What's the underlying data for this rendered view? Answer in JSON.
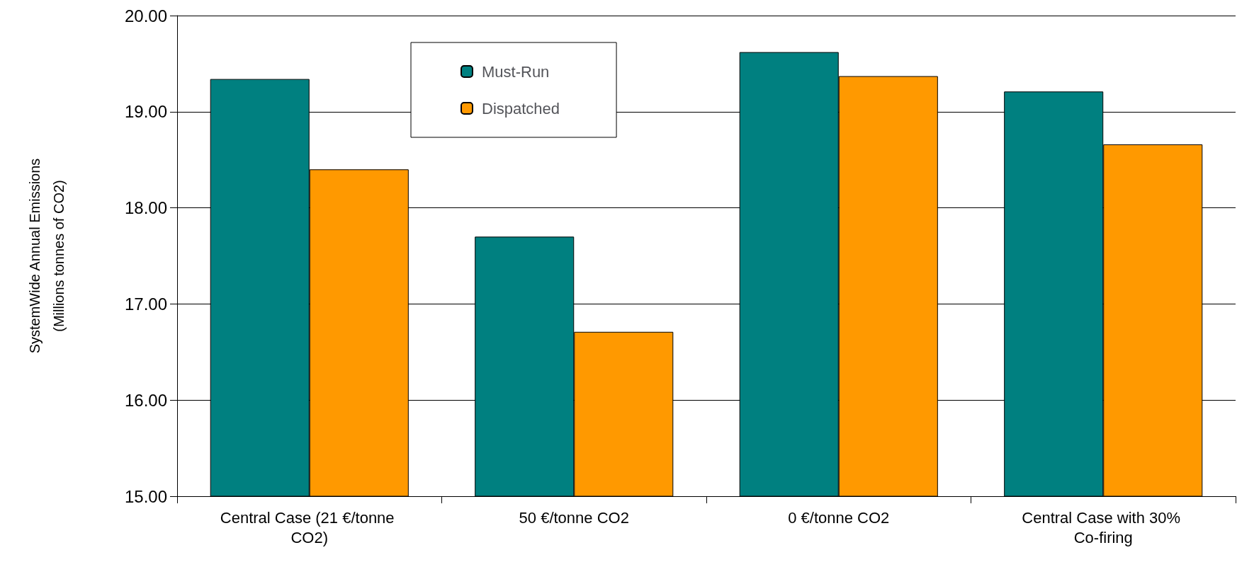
{
  "chart_data": {
    "type": "bar",
    "ylabel": "SystemWide Annual Emissions\n(Millions tonnes of CO2)",
    "categories": [
      "Central Case (21 €/tonne CO2)",
      "50 €/tonne CO2",
      "0 €/tonne CO2",
      "Central Case with 30% Co-firing"
    ],
    "series": [
      {
        "name": "Must-Run",
        "color": "#008080",
        "values": [
          19.34,
          17.7,
          19.62,
          19.21
        ]
      },
      {
        "name": "Dispatched",
        "color": "#ff9900",
        "values": [
          18.4,
          16.71,
          19.37,
          18.66
        ]
      }
    ],
    "ylim": [
      15,
      20
    ],
    "yticks": [
      {
        "value": 15,
        "label": "15.00"
      },
      {
        "value": 16,
        "label": "16.00"
      },
      {
        "value": 17,
        "label": "17.00"
      },
      {
        "value": 18,
        "label": "18.00"
      },
      {
        "value": 19,
        "label": "19.00"
      },
      {
        "value": 20,
        "label": "20.00"
      }
    ],
    "grid": "y",
    "legend": "top"
  }
}
